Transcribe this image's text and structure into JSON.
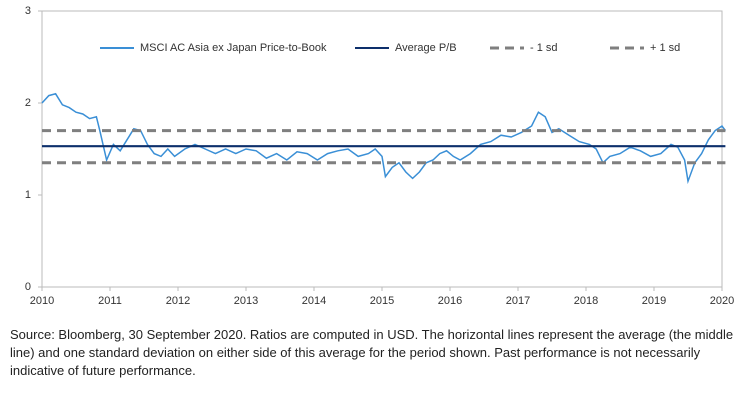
{
  "chart_data": {
    "type": "line",
    "xlim": [
      2010,
      2020
    ],
    "xticks": [
      2010,
      2011,
      2012,
      2013,
      2014,
      2015,
      2016,
      2017,
      2018,
      2019,
      2020
    ],
    "ylim": [
      0,
      3
    ],
    "yticks": [
      0,
      1,
      2,
      3
    ],
    "series": [
      {
        "name": "MSCI AC Asia ex Japan Price-to-Book",
        "color": "#3a8fd6",
        "dash": false,
        "x": [
          2010.0,
          2010.1,
          2010.2,
          2010.3,
          2010.4,
          2010.5,
          2010.6,
          2010.7,
          2010.8,
          2010.85,
          2010.95,
          2011.05,
          2011.15,
          2011.25,
          2011.35,
          2011.45,
          2011.55,
          2011.65,
          2011.75,
          2011.85,
          2011.95,
          2012.1,
          2012.25,
          2012.4,
          2012.55,
          2012.7,
          2012.85,
          2013.0,
          2013.15,
          2013.3,
          2013.45,
          2013.6,
          2013.75,
          2013.9,
          2014.05,
          2014.2,
          2014.35,
          2014.5,
          2014.65,
          2014.8,
          2014.9,
          2015.0,
          2015.05,
          2015.15,
          2015.25,
          2015.35,
          2015.45,
          2015.55,
          2015.65,
          2015.75,
          2015.85,
          2015.95,
          2016.05,
          2016.15,
          2016.3,
          2016.45,
          2016.6,
          2016.75,
          2016.9,
          2017.05,
          2017.2,
          2017.3,
          2017.4,
          2017.5,
          2017.6,
          2017.75,
          2017.9,
          2018.05,
          2018.15,
          2018.25,
          2018.35,
          2018.5,
          2018.65,
          2018.8,
          2018.95,
          2019.1,
          2019.25,
          2019.35,
          2019.45,
          2019.5,
          2019.6,
          2019.7,
          2019.8,
          2019.9,
          2020.0,
          2020.05
        ],
        "values": [
          2.0,
          2.08,
          2.1,
          1.98,
          1.95,
          1.9,
          1.88,
          1.83,
          1.85,
          1.7,
          1.38,
          1.55,
          1.48,
          1.6,
          1.72,
          1.7,
          1.55,
          1.45,
          1.42,
          1.5,
          1.42,
          1.5,
          1.55,
          1.5,
          1.45,
          1.5,
          1.45,
          1.5,
          1.48,
          1.4,
          1.45,
          1.38,
          1.47,
          1.45,
          1.38,
          1.45,
          1.48,
          1.5,
          1.42,
          1.45,
          1.5,
          1.42,
          1.2,
          1.3,
          1.35,
          1.25,
          1.18,
          1.25,
          1.35,
          1.38,
          1.45,
          1.48,
          1.42,
          1.38,
          1.45,
          1.55,
          1.58,
          1.65,
          1.63,
          1.68,
          1.75,
          1.9,
          1.85,
          1.68,
          1.72,
          1.65,
          1.58,
          1.55,
          1.5,
          1.35,
          1.42,
          1.45,
          1.52,
          1.48,
          1.42,
          1.45,
          1.55,
          1.52,
          1.38,
          1.15,
          1.35,
          1.45,
          1.6,
          1.7,
          1.75,
          1.7
        ]
      },
      {
        "name": "Average P/B",
        "color": "#0d2f6b",
        "dash": false,
        "x": [
          2010,
          2020.05
        ],
        "values": [
          1.53,
          1.53
        ]
      },
      {
        "name": "- 1 sd",
        "color": "#7f7f7f",
        "dash": true,
        "x": [
          2010,
          2020.05
        ],
        "values": [
          1.35,
          1.35
        ]
      },
      {
        "name": "+ 1 sd",
        "color": "#7f7f7f",
        "dash": true,
        "x": [
          2010,
          2020.05
        ],
        "values": [
          1.7,
          1.7
        ]
      }
    ],
    "source": "Source: Bloomberg, 30 September 2020. Ratios are computed in USD. The horizontal lines represent the average (the middle line) and one standard deviation on either side of this average for the period shown. Past performance is not necessarily indicative of future performance."
  }
}
